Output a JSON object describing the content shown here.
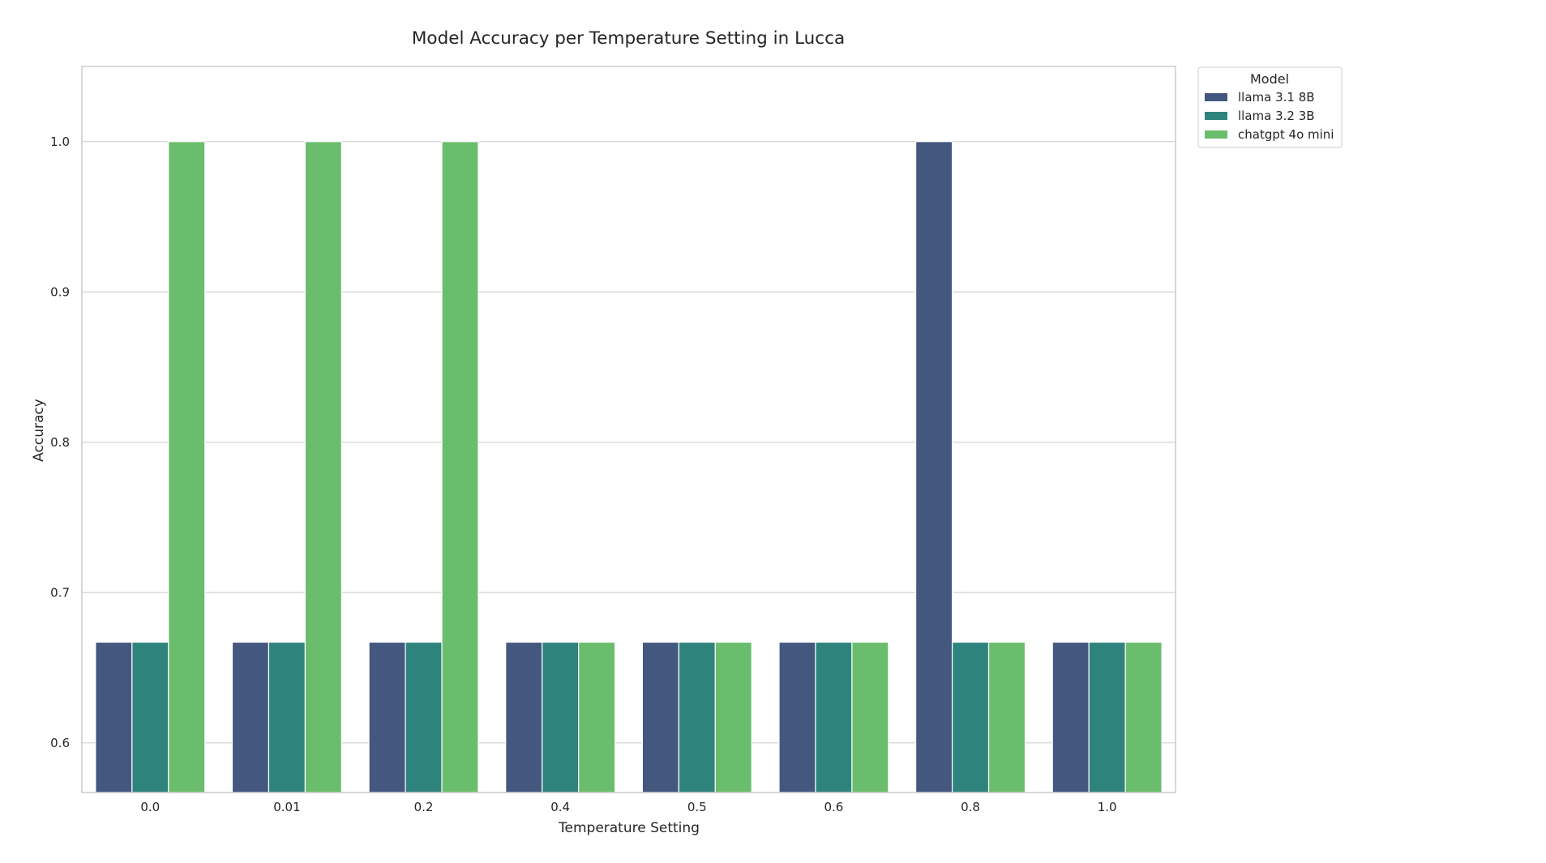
{
  "chart_data": {
    "type": "bar",
    "title": "Model Accuracy per Temperature Setting in Lucca",
    "xlabel": "Temperature Setting",
    "ylabel": "Accuracy",
    "categories": [
      "0.0",
      "0.01",
      "0.2",
      "0.4",
      "0.5",
      "0.6",
      "0.8",
      "1.0"
    ],
    "ylim": [
      0.567,
      1.05
    ],
    "yticks": [
      "0.6",
      "0.7",
      "0.8",
      "0.9",
      "1.0"
    ],
    "grid": true,
    "legend": {
      "title": "Model",
      "placement": "outside-top-right"
    },
    "series": [
      {
        "name": "llama 3.1 8B",
        "color": "#43577f",
        "values": [
          0.667,
          0.667,
          0.667,
          0.667,
          0.667,
          0.667,
          1.0,
          0.667
        ]
      },
      {
        "name": "llama 3.2 3B",
        "color": "#2e847d",
        "values": [
          0.667,
          0.667,
          0.667,
          0.667,
          0.667,
          0.667,
          0.667,
          0.667
        ]
      },
      {
        "name": "chatgpt 4o mini",
        "color": "#6abd6c",
        "values": [
          1.0,
          1.0,
          1.0,
          0.667,
          0.667,
          0.667,
          0.667,
          0.667
        ]
      }
    ]
  }
}
